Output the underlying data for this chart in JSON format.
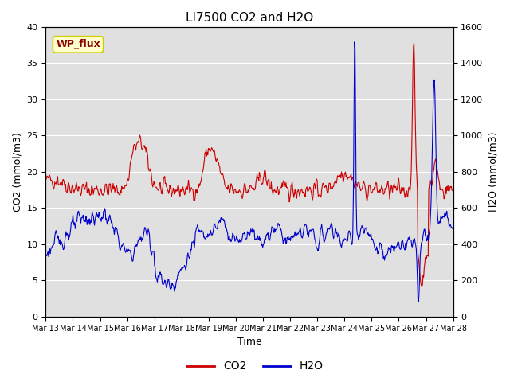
{
  "title": "LI7500 CO2 and H2O",
  "xlabel": "Time",
  "ylabel_left": "CO2 (mmol/m3)",
  "ylabel_right": "H2O (mmol/m3)",
  "ylim_left": [
    0,
    40
  ],
  "ylim_right": [
    0,
    1600
  ],
  "co2_color": "#cc0000",
  "h2o_color": "#0000cc",
  "legend_label_co2": "CO2",
  "legend_label_h2o": "H2O",
  "annotation_text": "WP_flux",
  "annotation_color": "#8b0000",
  "annotation_bg": "#ffffcc",
  "annotation_edge": "#cccc00",
  "bg_color": "#e0e0e0",
  "line_width": 0.8,
  "x_tick_labels": [
    "Mar 13",
    "Mar 14",
    "Mar 15",
    "Mar 16",
    "Mar 17",
    "Mar 18",
    "Mar 19",
    "Mar 20",
    "Mar 21",
    "Mar 22",
    "Mar 23",
    "Mar 24",
    "Mar 25",
    "Mar 26",
    "Mar 27",
    "Mar 28"
  ],
  "yticks_left": [
    0,
    5,
    10,
    15,
    20,
    25,
    30,
    35,
    40
  ],
  "yticks_right": [
    0,
    200,
    400,
    600,
    800,
    1000,
    1200,
    1400,
    1600
  ]
}
